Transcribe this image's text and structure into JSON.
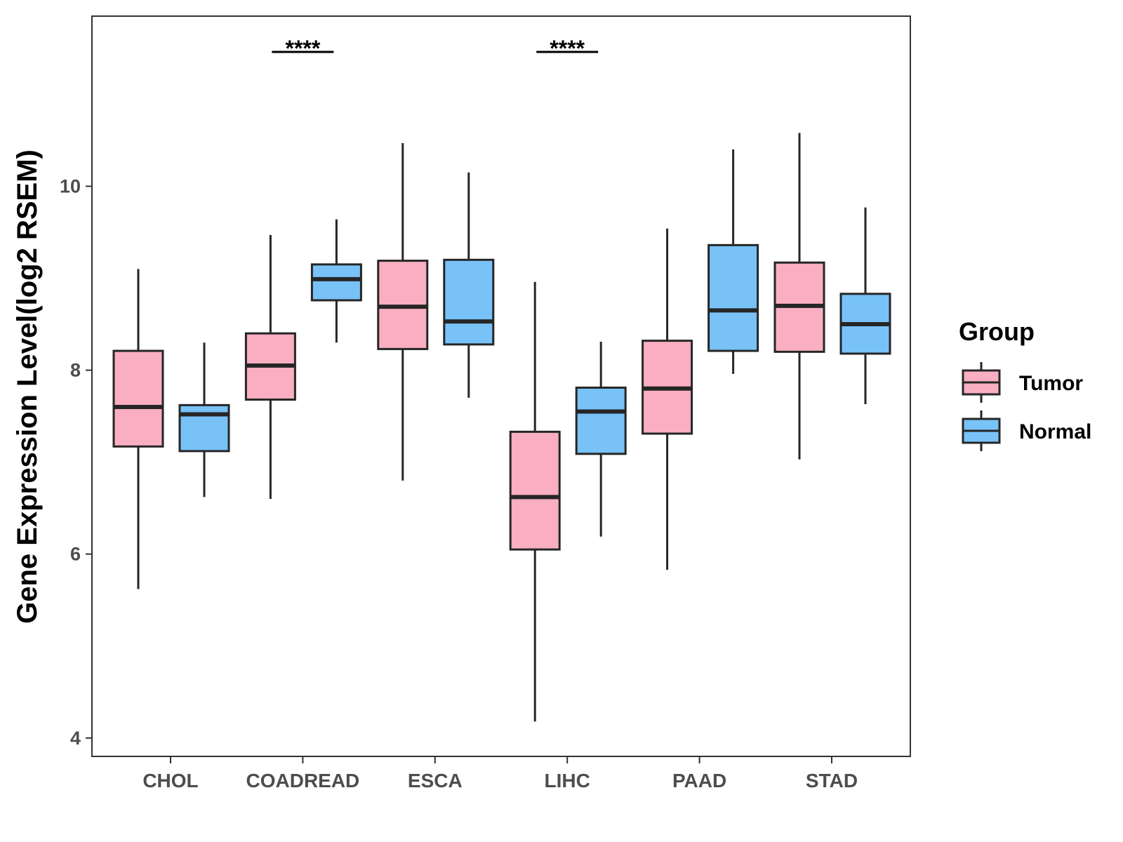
{
  "chart_data": {
    "type": "boxplot",
    "ylabel": "Gene Expression Level(log2 RSEM)",
    "xlabel": "",
    "ylim": [
      3.8,
      11.85
    ],
    "yticks": [
      4,
      6,
      8,
      10
    ],
    "yticklabels": [
      "4",
      "6",
      "8",
      "10"
    ],
    "categories": [
      "CHOL",
      "COADREAD",
      "ESCA",
      "LIHC",
      "PAAD",
      "STAD"
    ],
    "legend": {
      "title": "Group",
      "position": "right",
      "entries": [
        {
          "name": "Tumor",
          "color": "#F9AFC1"
        },
        {
          "name": "Normal",
          "color": "#78C2F8"
        }
      ]
    },
    "series": [
      {
        "name": "Tumor",
        "color": "#F9AFC1",
        "boxes": [
          {
            "category": "CHOL",
            "min": 5.62,
            "q1": 7.17,
            "median": 7.6,
            "q3": 8.21,
            "max": 9.1
          },
          {
            "category": "COADREAD",
            "min": 6.6,
            "q1": 7.68,
            "median": 8.05,
            "q3": 8.4,
            "max": 9.47
          },
          {
            "category": "ESCA",
            "min": 6.8,
            "q1": 8.23,
            "median": 8.69,
            "q3": 9.19,
            "max": 10.47
          },
          {
            "category": "LIHC",
            "min": 4.18,
            "q1": 6.05,
            "median": 6.62,
            "q3": 7.33,
            "max": 8.96
          },
          {
            "category": "PAAD",
            "min": 5.83,
            "q1": 7.31,
            "median": 7.8,
            "q3": 8.32,
            "max": 9.54
          },
          {
            "category": "STAD",
            "min": 7.03,
            "q1": 8.2,
            "median": 8.7,
            "q3": 9.17,
            "max": 10.58
          }
        ]
      },
      {
        "name": "Normal",
        "color": "#78C2F8",
        "boxes": [
          {
            "category": "CHOL",
            "min": 6.62,
            "q1": 7.12,
            "median": 7.52,
            "q3": 7.62,
            "max": 8.3
          },
          {
            "category": "COADREAD",
            "min": 8.3,
            "q1": 8.76,
            "median": 8.99,
            "q3": 9.15,
            "max": 9.64
          },
          {
            "category": "ESCA",
            "min": 7.7,
            "q1": 8.28,
            "median": 8.53,
            "q3": 9.2,
            "max": 10.15
          },
          {
            "category": "LIHC",
            "min": 6.19,
            "q1": 7.09,
            "median": 7.55,
            "q3": 7.81,
            "max": 8.31
          },
          {
            "category": "PAAD",
            "min": 7.96,
            "q1": 8.21,
            "median": 8.65,
            "q3": 9.36,
            "max": 10.4
          },
          {
            "category": "STAD",
            "min": 7.63,
            "q1": 8.18,
            "median": 8.5,
            "q3": 8.83,
            "max": 9.77
          }
        ]
      }
    ],
    "annotations": [
      {
        "category": "COADREAD",
        "text": "****"
      },
      {
        "category": "LIHC",
        "text": "****"
      }
    ]
  }
}
